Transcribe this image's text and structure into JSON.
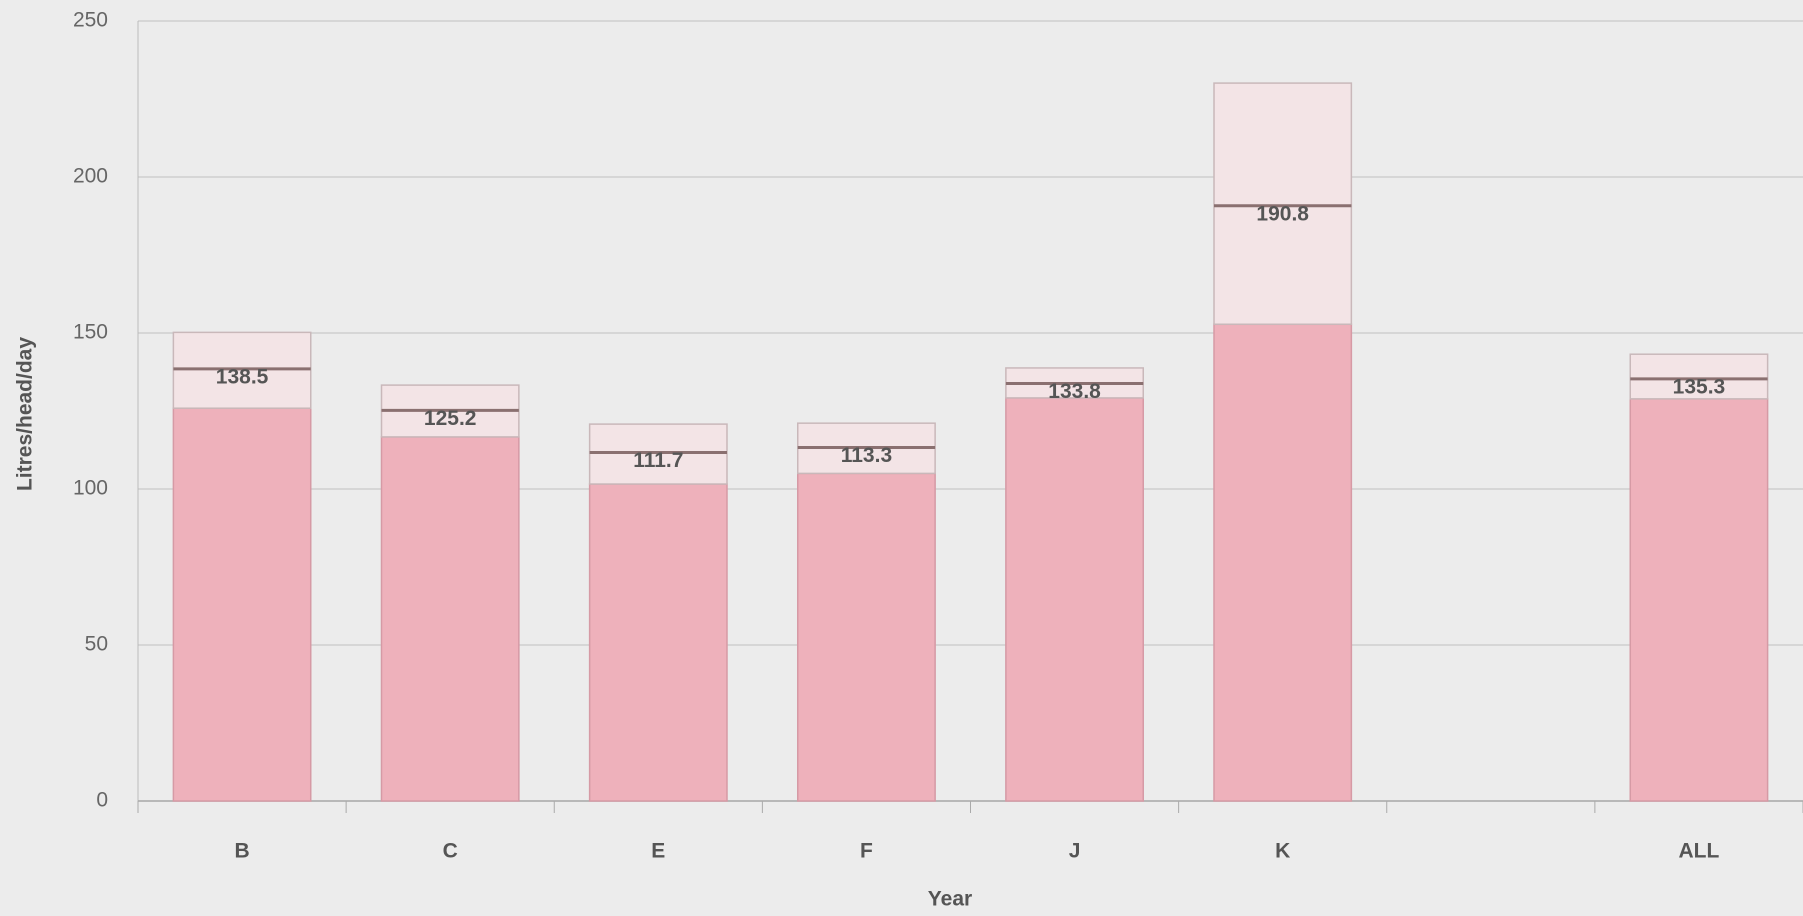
{
  "chart_data": {
    "type": "stacked_bar",
    "x_label": "Year",
    "y_label": "Litres/head/day",
    "categories": [
      "B",
      "C",
      "E",
      "F",
      "J",
      "K",
      null,
      "ALL"
    ],
    "series": [
      {
        "color": "#eeb1bb",
        "values": [
          125.9,
          116.7,
          101.6,
          105.0,
          129.2,
          152.8,
          null,
          128.9
        ]
      },
      {
        "color": "#f3e4e6",
        "values": [
          24.3,
          16.6,
          19.2,
          16.1,
          9.6,
          77.3,
          null,
          14.3
        ]
      }
    ],
    "markers": {
      "color": "#8a7070",
      "values": [
        138.5,
        125.2,
        111.7,
        113.3,
        133.8,
        190.8,
        null,
        135.3
      ]
    },
    "ylim": [
      0,
      250
    ],
    "yticks": [
      0,
      50,
      100,
      150,
      200,
      250
    ],
    "grid": true
  }
}
